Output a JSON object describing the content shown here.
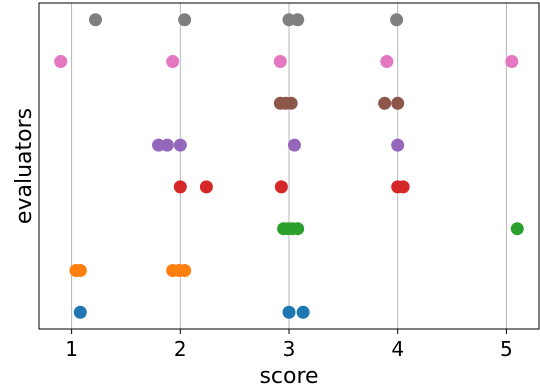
{
  "chart_data": {
    "type": "scatter",
    "xlabel": "score",
    "ylabel": "evaluators",
    "xlim": [
      0.7,
      5.3
    ],
    "ylim": [
      -0.4,
      7.4
    ],
    "xticks": [
      1,
      2,
      3,
      4,
      5
    ],
    "grid": "vertical",
    "title": "",
    "series": [
      {
        "color": "#1f77b4",
        "y": 0,
        "x": [
          1.08,
          3.0,
          3.13
        ]
      },
      {
        "color": "#ff7f0e",
        "y": 1,
        "x": [
          1.04,
          1.08,
          1.93,
          1.99,
          2.04
        ]
      },
      {
        "color": "#2ca02c",
        "y": 2,
        "x": [
          2.95,
          2.99,
          3.03,
          3.08,
          5.1
        ]
      },
      {
        "color": "#d62728",
        "y": 3,
        "x": [
          2.0,
          2.24,
          2.93,
          4.0,
          4.05
        ]
      },
      {
        "color": "#9467bd",
        "y": 4,
        "x": [
          1.8,
          1.88,
          2.0,
          3.05,
          4.0
        ]
      },
      {
        "color": "#8c564b",
        "y": 5,
        "x": [
          2.92,
          2.97,
          3.02,
          3.88,
          4.0
        ]
      },
      {
        "color": "#e377c2",
        "y": 6,
        "x": [
          0.9,
          1.93,
          2.92,
          3.9,
          5.05
        ]
      },
      {
        "color": "#7f7f7f",
        "y": 7,
        "x": [
          1.22,
          2.04,
          3.0,
          3.08,
          3.99
        ]
      }
    ]
  }
}
